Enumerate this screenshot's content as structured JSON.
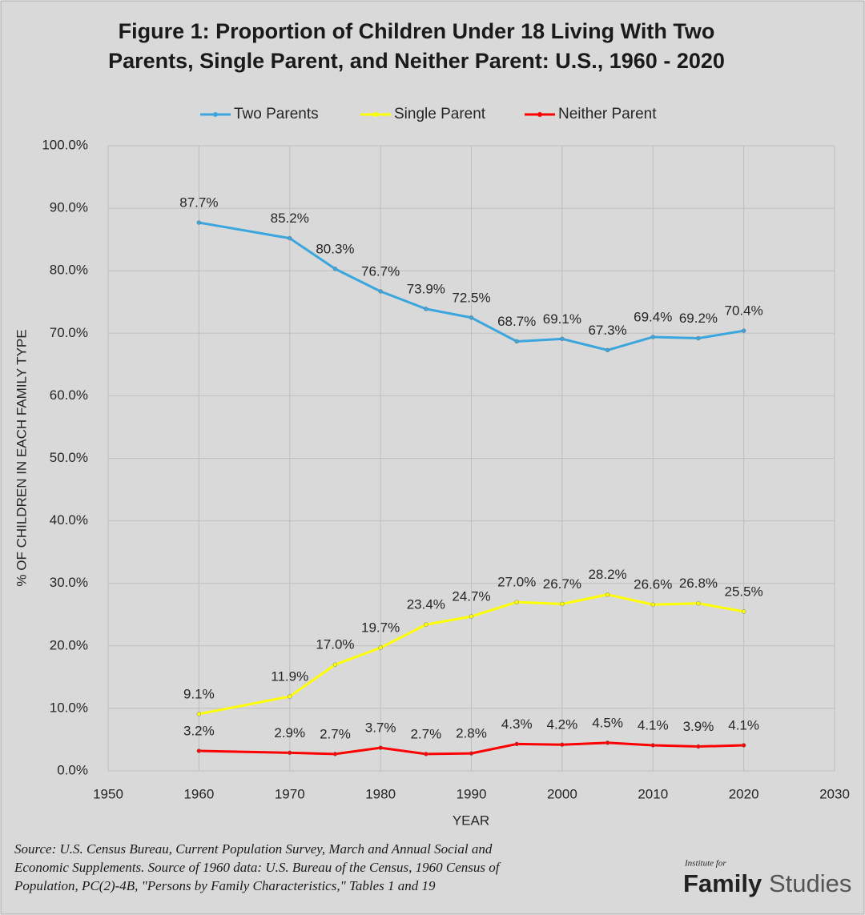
{
  "chart_data": {
    "type": "line",
    "title": [
      "Figure 1: Proportion of Children Under 18 Living With Two",
      "Parents, Single Parent, and Neither Parent: U.S., 1960 - 2020"
    ],
    "x_label": "YEAR",
    "y_label": "% OF CHILDREN IN EACH FAMILY TYPE",
    "x": [
      1960,
      1970,
      1975,
      1980,
      1985,
      1990,
      1995,
      2000,
      2005,
      2010,
      2015,
      2020
    ],
    "series": [
      {
        "name": "Two Parents",
        "color": "#3aa6dd",
        "values": [
          87.7,
          85.2,
          80.3,
          76.7,
          73.9,
          72.5,
          68.7,
          69.1,
          67.3,
          69.4,
          69.2,
          70.4
        ],
        "value_labels": [
          "87.7%",
          "85.2%",
          "80.3%",
          "76.7%",
          "73.9%",
          "72.5%",
          "68.7%",
          "69.1%",
          "67.3%",
          "69.4%",
          "69.2%",
          "70.4%"
        ]
      },
      {
        "name": "Single Parent",
        "color": "#ffff00",
        "values": [
          9.1,
          11.9,
          17.0,
          19.7,
          23.4,
          24.7,
          27.0,
          26.7,
          28.2,
          26.6,
          26.8,
          25.5
        ],
        "value_labels": [
          "9.1%",
          "11.9%",
          "17.0%",
          "19.7%",
          "23.4%",
          "24.7%",
          "27.0%",
          "26.7%",
          "28.2%",
          "26.6%",
          "26.8%",
          "25.5%"
        ]
      },
      {
        "name": "Neither Parent",
        "color": "#ff0000",
        "values": [
          3.2,
          2.9,
          2.7,
          3.7,
          2.7,
          2.8,
          4.3,
          4.2,
          4.5,
          4.1,
          3.9,
          4.1
        ],
        "value_labels": [
          "3.2%",
          "2.9%",
          "2.7%",
          "3.7%",
          "2.7%",
          "2.8%",
          "4.3%",
          "4.2%",
          "4.5%",
          "4.1%",
          "3.9%",
          "4.1%"
        ]
      }
    ],
    "xlim": [
      1950,
      2030
    ],
    "xticks": [
      1950,
      1960,
      1970,
      1980,
      1990,
      2000,
      2010,
      2020,
      2030
    ],
    "ylim": [
      0,
      100
    ],
    "yticks": [
      {
        "value": 0,
        "label": "0.0%"
      },
      {
        "value": 10,
        "label": "10.0%"
      },
      {
        "value": 20,
        "label": "20.0%"
      },
      {
        "value": 30,
        "label": "30.0%"
      },
      {
        "value": 40,
        "label": "40.0%"
      },
      {
        "value": 50,
        "label": "50.0%"
      },
      {
        "value": 60,
        "label": "60.0%"
      },
      {
        "value": 70,
        "label": "70.0%"
      },
      {
        "value": 80,
        "label": "80.0%"
      },
      {
        "value": 90,
        "label": "90.0%"
      },
      {
        "value": 100,
        "label": "100.0%"
      }
    ],
    "grid": true,
    "legend": "top",
    "source": [
      "Source:  U.S. Census Bureau, Current Population Survey, March and Annual Social and",
      "Economic Supplements. Source of 1960 data:  U.S. Bureau of the Census, 1960 Census of",
      "Population, PC(2)-4B, \"Persons by Family Characteristics,\" Tables 1 and 19"
    ],
    "logo": {
      "small": "Institute for",
      "bold": "Family",
      "light": "Studies"
    }
  }
}
